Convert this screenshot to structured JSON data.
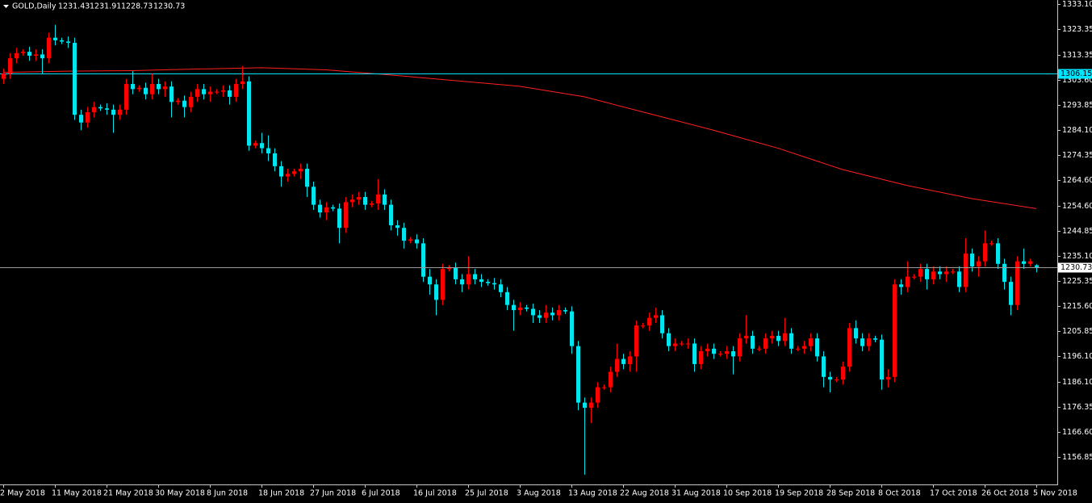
{
  "chart_data": {
    "type": "candlestick",
    "symbol": "GOLD,Daily",
    "up_color": "#ff0000",
    "down_color": "#00e5ee",
    "categories": [
      "2 May 2018",
      null,
      null,
      null,
      null,
      null,
      null,
      null,
      "11 May 2018",
      null,
      null,
      null,
      null,
      null,
      null,
      null,
      "21 May 2018",
      null,
      null,
      null,
      null,
      null,
      null,
      null,
      "30 May 2018",
      null,
      null,
      null,
      null,
      null,
      null,
      null,
      "8 Jun 2018",
      null,
      null,
      null,
      null,
      null,
      null,
      null,
      "18 Jun 2018",
      null,
      null,
      null,
      null,
      null,
      null,
      null,
      "27 Jun 2018",
      null,
      null,
      null,
      null,
      null,
      null,
      null,
      "6 Jul 2018",
      null,
      null,
      null,
      null,
      null,
      null,
      null,
      "16 Jul 2018",
      null,
      null,
      null,
      null,
      null,
      null,
      null,
      "25 Jul 2018",
      null,
      null,
      null,
      null,
      null,
      null,
      null,
      "3 Aug 2018",
      null,
      null,
      null,
      null,
      null,
      null,
      null,
      "13 Aug 2018",
      null,
      null,
      null,
      null,
      null,
      null,
      null,
      "22 Aug 2018",
      null,
      null,
      null,
      null,
      null,
      null,
      null,
      "31 Aug 2018",
      null,
      null,
      null,
      null,
      null,
      null,
      null,
      "10 Sep 2018",
      null,
      null,
      null,
      null,
      null,
      null,
      null,
      "19 Sep 2018",
      null,
      null,
      null,
      null,
      null,
      null,
      null,
      "28 Sep 2018",
      null,
      null,
      null,
      null,
      null,
      null,
      null,
      "8 Oct 2018",
      null,
      null,
      null,
      null,
      null,
      null,
      null,
      "17 Oct 2018",
      null,
      null,
      null,
      null,
      null,
      null,
      null,
      "26 Oct 2018",
      null,
      null,
      null,
      null,
      null,
      null,
      null,
      "5 Nov 2018"
    ],
    "open": [
      1304,
      1306,
      1312,
      1314,
      1314.5,
      1313,
      1313.5,
      1312,
      1320,
      1319,
      1318.5,
      1318,
      1290,
      1287,
      1291,
      1293,
      1292.5,
      1292,
      1290,
      1292,
      1302,
      1300,
      1300.5,
      1298,
      1302,
      1300,
      1301,
      1295,
      1295.5,
      1293,
      1297,
      1300,
      1298,
      1299,
      1299,
      1299.5,
      1297,
      1302,
      1303,
      1278,
      1279,
      1277,
      1275,
      1270,
      1266,
      1267,
      1268,
      1269,
      1262,
      1255,
      1252,
      1254,
      1253.5,
      1246,
      1256,
      1257,
      1258,
      1255,
      1255.5,
      1259,
      1255,
      1247,
      1246,
      1241,
      1241.5,
      1240,
      1227,
      1224,
      1218,
      1230,
      1230.5,
      1226,
      1224,
      1228,
      1226,
      1225,
      1224.5,
      1224,
      1221,
      1216,
      1214,
      1215,
      1214.5,
      1212,
      1211,
      1213,
      1212,
      1214,
      1213.5,
      1200,
      1178,
      1176,
      1178,
      1184,
      1184,
      1190,
      1195,
      1193,
      1196,
      1208,
      1208,
      1211,
      1212,
      1205,
      1200,
      1201,
      1201,
      1201,
      1193,
      1198,
      1199,
      1197,
      1197,
      1198,
      1196,
      1203,
      1204,
      1199,
      1199,
      1203,
      1204,
      1202,
      1205,
      1199,
      1199,
      1200,
      1203,
      1196,
      1188,
      1187,
      1187,
      1192,
      1207,
      1203,
      1200,
      1203,
      1202.5,
      1187,
      1188,
      1224,
      1223,
      1227,
      1227,
      1230,
      1226,
      1229,
      1228,
      1229,
      1229,
      1223,
      1236,
      1231,
      1233,
      1240,
      1240,
      1232,
      1225,
      1216,
      1233,
      1232,
      1231.43
    ],
    "high": [
      1308,
      1314,
      1316,
      1315.5,
      1316.5,
      1315.5,
      1315.5,
      1322,
      1325,
      1320,
      1320.5,
      1320,
      1292,
      1293,
      1295,
      1294,
      1294.5,
      1294,
      1294,
      1304,
      1307,
      1301.5,
      1302.5,
      1306,
      1304,
      1303,
      1303,
      1296.5,
      1297.5,
      1299,
      1302,
      1302,
      1301,
      1300,
      1301.5,
      1301.5,
      1304,
      1309,
      1305,
      1280,
      1283,
      1282,
      1277,
      1272,
      1269,
      1269,
      1271,
      1271,
      1264,
      1257,
      1256,
      1255,
      1255.5,
      1258,
      1259,
      1260,
      1260,
      1256.5,
      1265,
      1261,
      1257,
      1249,
      1248,
      1242.5,
      1243.5,
      1242,
      1230,
      1226,
      1232,
      1231.5,
      1232.5,
      1228,
      1235,
      1230,
      1228,
      1226,
      1226.5,
      1226,
      1223,
      1218,
      1217,
      1216,
      1216.5,
      1214,
      1216,
      1215,
      1216,
      1215,
      1215.5,
      1202,
      1180,
      1180,
      1186,
      1185,
      1192,
      1201,
      1197,
      1198,
      1210,
      1209,
      1213,
      1215,
      1214,
      1207,
      1203,
      1202,
      1203,
      1203,
      1200,
      1201,
      1201,
      1198,
      1200,
      1200,
      1205,
      1212,
      1206,
      1200,
      1205,
      1206,
      1206,
      1211,
      1207,
      1200,
      1202,
      1205,
      1205,
      1198,
      1190,
      1188,
      1194,
      1209,
      1210,
      1205,
      1205,
      1204,
      1204.5,
      1191,
      1226,
      1226,
      1233,
      1228,
      1232,
      1232,
      1231,
      1231,
      1231,
      1230,
      1231,
      1242,
      1238,
      1235,
      1245,
      1241,
      1242,
      1234,
      1227,
      1235,
      1238,
      1234,
      1231.91
    ],
    "low": [
      1302,
      1304,
      1310,
      1313,
      1311,
      1311,
      1306,
      1310,
      1317,
      1317.5,
      1316,
      1288,
      1284,
      1285,
      1289,
      1291.5,
      1290,
      1283,
      1288,
      1290,
      1298,
      1299,
      1296,
      1296,
      1298,
      1297,
      1289,
      1294,
      1289,
      1291,
      1295,
      1296,
      1295,
      1298,
      1297,
      1294,
      1295,
      1300,
      1276,
      1277,
      1275,
      1272,
      1268,
      1262,
      1264,
      1266,
      1265,
      1258,
      1253,
      1250,
      1249,
      1252.5,
      1240,
      1244,
      1254,
      1255,
      1253,
      1254,
      1253,
      1253,
      1245,
      1243,
      1238,
      1240,
      1238,
      1225,
      1220,
      1212,
      1216,
      1229,
      1224,
      1221,
      1222,
      1224,
      1223,
      1223.5,
      1222,
      1219,
      1214,
      1206,
      1212,
      1213.5,
      1209,
      1209,
      1209,
      1210,
      1210,
      1212.5,
      1197,
      1175,
      1150,
      1170,
      1176,
      1183,
      1182,
      1188,
      1191,
      1190,
      1190,
      1207,
      1206,
      1209,
      1203,
      1198,
      1198,
      1200,
      1199,
      1190,
      1191,
      1196,
      1195,
      1196,
      1195,
      1189,
      1194,
      1201,
      1197,
      1198,
      1197,
      1201,
      1200,
      1200,
      1197,
      1198,
      1197,
      1198,
      1194,
      1184,
      1182,
      1186,
      1185,
      1190,
      1201,
      1198,
      1198,
      1201.5,
      1183,
      1184,
      1186,
      1220,
      1221,
      1226,
      1225,
      1222,
      1224,
      1226,
      1225,
      1228,
      1221,
      1221,
      1229,
      1227,
      1231,
      1239,
      1230,
      1222,
      1212,
      1214,
      1230,
      1231,
      1228.73
    ],
    "close": [
      1306,
      1312,
      1314,
      1314.5,
      1313,
      1313.5,
      1312,
      1320,
      1319,
      1318.5,
      1318,
      1290,
      1287,
      1291,
      1293,
      1292.5,
      1292,
      1290,
      1292,
      1302,
      1300,
      1300.5,
      1298,
      1302,
      1300,
      1301,
      1295,
      1295.5,
      1293,
      1297,
      1300,
      1298,
      1299,
      1299,
      1299.5,
      1297,
      1302,
      1303,
      1278,
      1279,
      1277,
      1275,
      1270,
      1266,
      1267,
      1268,
      1269,
      1262,
      1255,
      1252,
      1254,
      1253.5,
      1246,
      1256,
      1257,
      1258,
      1255,
      1255.5,
      1259,
      1255,
      1247,
      1246,
      1241,
      1241.5,
      1240,
      1227,
      1224,
      1218,
      1230,
      1230.5,
      1226,
      1224,
      1228,
      1226,
      1225,
      1224.5,
      1224,
      1221,
      1216,
      1214,
      1215,
      1214.5,
      1212,
      1211,
      1213,
      1212,
      1214,
      1213.5,
      1200,
      1178,
      1176,
      1178,
      1184,
      1184,
      1190,
      1195,
      1193,
      1196,
      1208,
      1208,
      1211,
      1212,
      1205,
      1200,
      1201,
      1201,
      1201,
      1193,
      1198,
      1199,
      1197,
      1197,
      1198,
      1196,
      1203,
      1204,
      1199,
      1199,
      1203,
      1204,
      1202,
      1205,
      1199,
      1199,
      1200,
      1203,
      1196,
      1188,
      1187,
      1187,
      1192,
      1207,
      1203,
      1200,
      1203,
      1202.5,
      1187,
      1188,
      1224,
      1223,
      1227,
      1227,
      1230,
      1226,
      1229,
      1228,
      1229,
      1229,
      1223,
      1236,
      1231,
      1233,
      1240,
      1240,
      1232,
      1225,
      1216,
      1233,
      1232,
      1233,
      1230.73
    ],
    "ma": {
      "color": "#ff2020",
      "x": [
        0,
        10,
        20,
        30,
        40,
        50,
        60,
        70,
        80,
        90,
        100,
        110,
        120,
        130,
        140,
        150,
        160
      ],
      "values": [
        1306.5,
        1307,
        1307.2,
        1307.8,
        1308.3,
        1307.5,
        1305.5,
        1303.3,
        1301.1,
        1297,
        1290.5,
        1284,
        1277,
        1268.7,
        1262.5,
        1257.4,
        1253.5
      ]
    },
    "hlines": [
      {
        "value": 1306.15,
        "color": "#00e5ff"
      }
    ],
    "price_line_color": "#9a9a9a",
    "ylim": [
      1146.8,
      1334.67
    ],
    "yticks": [
      {
        "value": 1333.1,
        "label": "1333.10"
      },
      1323.35,
      1313.35,
      {
        "value": 1303.6,
        "label": "1303.60"
      },
      1293.85,
      {
        "value": 1284.1,
        "label": "1284.10"
      },
      1274.35,
      {
        "value": 1264.6,
        "label": "1264.60"
      },
      {
        "value": 1254.6,
        "label": "1254.60"
      },
      1244.85,
      {
        "value": 1235.1,
        "label": "1235.10"
      },
      1225.35,
      {
        "value": 1215.6,
        "label": "1215.60"
      },
      1205.85,
      {
        "value": 1196.1,
        "label": "1196.10"
      },
      {
        "value": 1186.1,
        "label": "1186.10"
      },
      1176.35,
      {
        "value": 1166.6,
        "label": "1166.60"
      },
      1156.85
    ]
  }
}
